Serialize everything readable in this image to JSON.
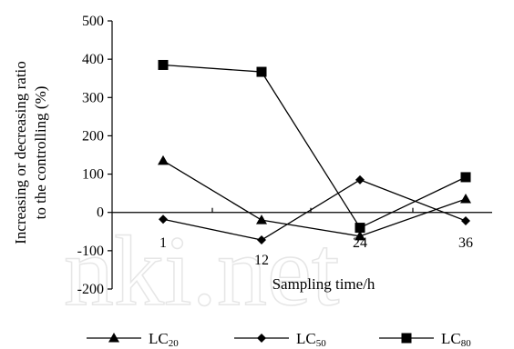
{
  "chart_data": {
    "type": "line",
    "xlabel": "Sampling time/h",
    "ylabel_line1": "Increasing or decreasing ratio",
    "ylabel_line2": "to the controlling (%)",
    "categories": [
      "1",
      "12",
      "24",
      "36"
    ],
    "ylim": [
      -200,
      500
    ],
    "yticks": [
      -200,
      -100,
      0,
      100,
      200,
      300,
      400,
      500
    ],
    "grid": false,
    "legend_position": "bottom",
    "series": [
      {
        "name": "LC",
        "subscript": "20",
        "marker": "triangle",
        "values": [
          135,
          -20,
          -62,
          35
        ]
      },
      {
        "name": "LC",
        "subscript": "50",
        "marker": "diamond",
        "values": [
          -18,
          -72,
          85,
          -22
        ]
      },
      {
        "name": "LC",
        "subscript": "80",
        "marker": "square",
        "values": [
          385,
          367,
          -40,
          92
        ]
      }
    ],
    "watermark": "nki.net"
  }
}
